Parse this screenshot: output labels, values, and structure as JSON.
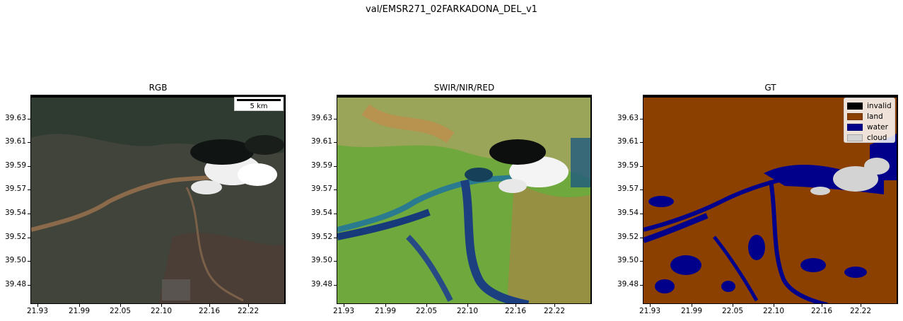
{
  "figure": {
    "suptitle": "val/EMSR271_02FARKADONA_DEL_v1"
  },
  "panels": [
    {
      "title": "RGB"
    },
    {
      "title": "SWIR/NIR/RED"
    },
    {
      "title": "GT"
    }
  ],
  "axes": {
    "y_ticks": [
      "39.63",
      "39.61",
      "39.59",
      "39.57",
      "39.54",
      "39.52",
      "39.50",
      "39.48"
    ],
    "x_ticks": [
      "21.93",
      "21.99",
      "22.05",
      "22.10",
      "22.16",
      "22.22"
    ]
  },
  "scalebar": {
    "label": "5 km"
  },
  "legend": {
    "items": [
      {
        "label": "invalid",
        "color": "#000000"
      },
      {
        "label": "land",
        "color": "#8b4000"
      },
      {
        "label": "water",
        "color": "#00008b"
      },
      {
        "label": "cloud",
        "color": "#d3d3d3"
      }
    ]
  }
}
